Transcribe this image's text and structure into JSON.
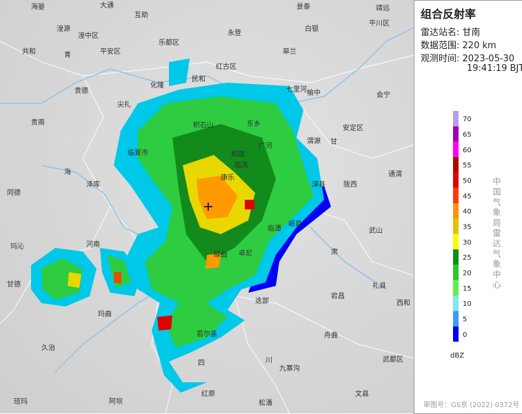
{
  "panel": {
    "title": "组合反射率",
    "station": {
      "label": "雷达站名:",
      "value": "甘南"
    },
    "range": {
      "label": "数据范围:",
      "value": "220 km"
    },
    "time": {
      "label": "观测时间:",
      "date": "2023-05-30",
      "time": "19:41:19 BJT"
    },
    "legend": {
      "unit": "dBZ",
      "levels": [
        {
          "value": 0,
          "color": "#0000f6"
        },
        {
          "value": 5,
          "color": "#3c9df0"
        },
        {
          "value": 10,
          "color": "#7fe8f0"
        },
        {
          "value": 15,
          "color": "#5cf050"
        },
        {
          "value": 20,
          "color": "#28c828"
        },
        {
          "value": 25,
          "color": "#109010"
        },
        {
          "value": 30,
          "color": "#fffa00"
        },
        {
          "value": 35,
          "color": "#e6c000"
        },
        {
          "value": 40,
          "color": "#ff9000"
        },
        {
          "value": 45,
          "color": "#ff3c00"
        },
        {
          "value": 50,
          "color": "#e60000"
        },
        {
          "value": 55,
          "color": "#b40000"
        },
        {
          "value": 60,
          "color": "#ff00f0"
        },
        {
          "value": 65,
          "color": "#9c00b4"
        },
        {
          "value": 70,
          "color": "#b89af0"
        }
      ]
    },
    "organization": "中国气象局雷达气象中心",
    "approval": "审图号：GS京 (2022) 0372号"
  },
  "map": {
    "labels": [
      "海晏",
      "大通",
      "互助",
      "湟源",
      "湟中区",
      "平安区",
      "乐都区",
      "永登",
      "皋兰",
      "景泰",
      "靖远",
      "平川区",
      "白银",
      "共和",
      "青",
      "民和",
      "红古区",
      "化隆",
      "尖扎",
      "贵德",
      "贵南",
      "海",
      "泽库",
      "同德",
      "临夏市",
      "积石山",
      "东乡",
      "和政",
      "临洮",
      "广河",
      "康乐",
      "渭源",
      "陇西",
      "漳县",
      "岷县",
      "宕昌",
      "安定区",
      "会宁",
      "通渭",
      "武山",
      "礼县",
      "西和",
      "碌曲",
      "卓尼",
      "临潭",
      "迭部",
      "舟曲",
      "武都区",
      "文县",
      "九寨沟",
      "松潘",
      "若尔盖",
      "红原",
      "阿坝",
      "班玛",
      "久治",
      "玛曲",
      "河南",
      "玛沁",
      "甘德",
      "四",
      "川",
      "甘",
      "肃",
      "榆中",
      "七里河"
    ]
  }
}
